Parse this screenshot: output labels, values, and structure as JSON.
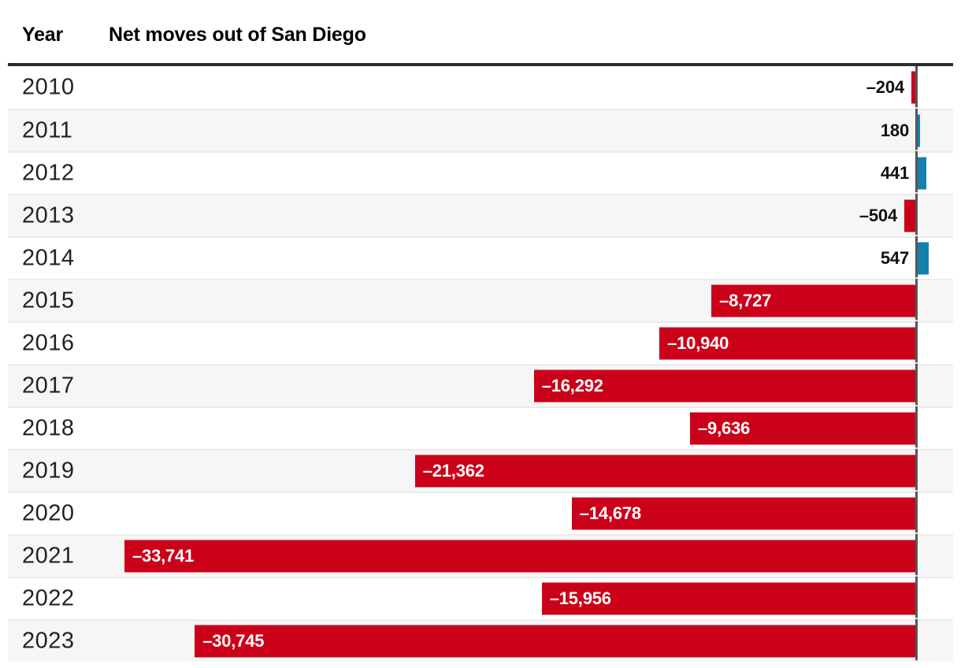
{
  "header": {
    "year_col": "Year",
    "value_col": "Net moves out of San Diego"
  },
  "colors": {
    "negative_bar": "#cb0119",
    "positive_bar": "#1580ab",
    "baseline": "#565656",
    "baseline_gap": "#dcdcdc",
    "alt_row_bg": "#f6f6f6",
    "separator": "#ebebeb",
    "header_rule": "#2b2b2b",
    "inside_label": "#ffffff",
    "outside_label": "#111111"
  },
  "chart_data": {
    "type": "bar",
    "orientation": "horizontal",
    "title": "Net moves out of San Diego",
    "xlabel": "Net moves out of San Diego",
    "ylabel": "Year",
    "categories": [
      "2010",
      "2011",
      "2012",
      "2013",
      "2014",
      "2015",
      "2016",
      "2017",
      "2018",
      "2019",
      "2020",
      "2021",
      "2022",
      "2023"
    ],
    "values": [
      -204,
      180,
      441,
      -504,
      547,
      -8727,
      -10940,
      -16292,
      -9636,
      -21362,
      -14678,
      -33741,
      -15956,
      -30745
    ],
    "value_labels": [
      "–204",
      "180",
      "441",
      "–504",
      "547",
      "–8,727",
      "–10,940",
      "–16,292",
      "–9,636",
      "–21,362",
      "–14,678",
      "–33,741",
      "–15,956",
      "–30,745"
    ],
    "xlim": [
      -33741,
      547
    ],
    "grid": false,
    "legend": false,
    "zero_baseline": true
  }
}
